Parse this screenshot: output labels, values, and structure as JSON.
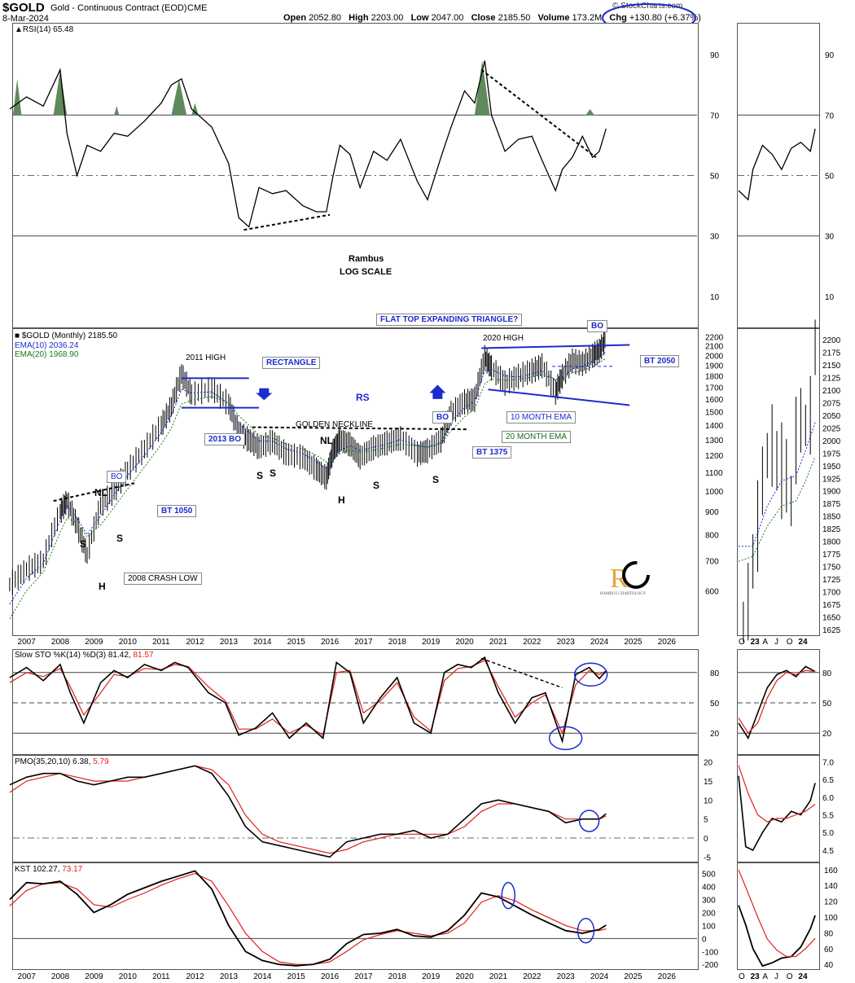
{
  "header": {
    "symbol": "$GOLD",
    "name": "Gold - Continuous Contract (EOD)",
    "exchange": "CME",
    "date": "8-Mar-2024",
    "open_label": "Open",
    "open": "2052.80",
    "high_label": "High",
    "high": "2203.00",
    "low_label": "Low",
    "low": "2047.00",
    "close_label": "Close",
    "close": "2185.50",
    "volume_label": "Volume",
    "volume": "173.2M",
    "chg_label": "Chg",
    "chg": "+130.80 (+6.37%)",
    "brand": "© StockCharts.com"
  },
  "annotations": {
    "author": "Rambus",
    "scale": "LOG SCALE",
    "flat_top": "FLAT TOP EXPANDING TRIANGLE?",
    "high_2011": "2011 HIGH",
    "high_2020": "2020 HIGH",
    "rectangle": "RECTANGLE",
    "bo_2013": "2013 BO",
    "bt_1050": "BT 1050",
    "bo": "BO",
    "bo2": "BO",
    "bo3": "BO",
    "bt_1375": "BT 1375",
    "bt_2050": "BT 2050",
    "ema10_lbl": "10 MONTH EMA",
    "ema20_lbl": "20 MONTH EMA",
    "golden_neckline": "GOLDEN NECKLINE",
    "nl": "NL",
    "nl2": "NL",
    "rs": "RS",
    "crash_low": "2008 CRASH LOW",
    "s": "S",
    "h": "H",
    "logo_text": "RAMBUS CHARTOLOGY"
  },
  "colors": {
    "price_bars": "#000000",
    "ema10": "#1c2bcc",
    "ema20": "#1a7a1a",
    "annotation_blue": "#1c2bcc",
    "signal_red": "#e0201a",
    "rsi_fill": "#5e8a5e",
    "logo_gold": "#e7a23a"
  },
  "chart_data": [
    {
      "type": "line",
      "panel": "RSI",
      "title": "RSI(14)",
      "current": "65.48",
      "ylim": [
        0,
        100
      ],
      "y_ticks": [
        10,
        30,
        50,
        70,
        90
      ],
      "x": [
        2006.5,
        2007.0,
        2007.5,
        2008.0,
        2008.2,
        2008.5,
        2008.8,
        2009.2,
        2009.6,
        2010.0,
        2010.5,
        2011.0,
        2011.3,
        2011.6,
        2011.9,
        2012.5,
        2013.0,
        2013.3,
        2013.6,
        2013.9,
        2014.3,
        2014.7,
        2015.2,
        2015.6,
        2015.9,
        2016.1,
        2016.3,
        2016.6,
        2016.9,
        2017.3,
        2017.7,
        2018.1,
        2018.6,
        2018.9,
        2019.3,
        2019.6,
        2020.0,
        2020.3,
        2020.6,
        2020.8,
        2021.2,
        2021.6,
        2022.0,
        2022.3,
        2022.7,
        2022.9,
        2023.2,
        2023.5,
        2023.8,
        2024.0,
        2024.2
      ],
      "values": [
        72,
        76,
        73,
        85,
        64,
        50,
        60,
        58,
        64,
        63,
        68,
        74,
        80,
        82,
        72,
        66,
        54,
        36,
        33,
        46,
        44,
        45,
        40,
        38,
        38,
        50,
        60,
        57,
        46,
        58,
        55,
        62,
        48,
        42,
        56,
        66,
        78,
        74,
        88,
        70,
        58,
        62,
        63,
        55,
        45,
        52,
        56,
        63,
        56,
        58,
        65.48
      ],
      "overbought": 70,
      "oversold": 30
    },
    {
      "type": "line",
      "panel": "price",
      "title": "$GOLD (Monthly)",
      "current": "2185.50",
      "scale": "log",
      "ylim": [
        480,
        2260
      ],
      "y_ticks": [
        600,
        700,
        800,
        900,
        1000,
        1100,
        1200,
        1300,
        1400,
        1500,
        1600,
        1700,
        1800,
        1900,
        2000,
        2100,
        2200
      ],
      "x_ticks": [
        "2007",
        "2008",
        "2009",
        "2010",
        "2011",
        "2012",
        "2013",
        "2014",
        "2015",
        "2016",
        "2017",
        "2018",
        "2019",
        "2020",
        "2021",
        "2022",
        "2023",
        "2024",
        "2025",
        "2026"
      ],
      "x": [
        2006.5,
        2007.0,
        2007.5,
        2008.0,
        2008.2,
        2008.5,
        2008.8,
        2009.2,
        2009.6,
        2010.0,
        2010.5,
        2011.0,
        2011.3,
        2011.6,
        2011.9,
        2012.5,
        2013.0,
        2013.3,
        2013.6,
        2013.9,
        2014.3,
        2014.7,
        2015.2,
        2015.6,
        2015.9,
        2016.1,
        2016.3,
        2016.6,
        2016.9,
        2017.3,
        2017.7,
        2018.1,
        2018.6,
        2018.9,
        2019.3,
        2019.6,
        2020.0,
        2020.3,
        2020.6,
        2020.8,
        2021.2,
        2021.6,
        2022.0,
        2022.3,
        2022.7,
        2022.9,
        2023.2,
        2023.5,
        2023.8,
        2024.0,
        2024.2
      ],
      "values": [
        620,
        670,
        700,
        900,
        950,
        840,
        720,
        930,
        1000,
        1110,
        1240,
        1400,
        1540,
        1820,
        1640,
        1690,
        1560,
        1350,
        1300,
        1250,
        1290,
        1210,
        1190,
        1120,
        1070,
        1230,
        1300,
        1270,
        1190,
        1250,
        1280,
        1310,
        1210,
        1230,
        1300,
        1490,
        1580,
        1600,
        1980,
        1880,
        1740,
        1800,
        1850,
        1900,
        1660,
        1800,
        1950,
        1920,
        2000,
        2050,
        2185.5
      ],
      "series": [
        {
          "name": "$GOLD (Monthly) 2185.50",
          "values_ref": "values"
        },
        {
          "name": "EMA(10) 2036.24",
          "values": [
            560,
            640,
            690,
            860,
            930,
            870,
            800,
            880,
            980,
            1080,
            1200,
            1350,
            1470,
            1680,
            1650,
            1660,
            1560,
            1420,
            1350,
            1290,
            1290,
            1240,
            1210,
            1160,
            1120,
            1170,
            1230,
            1260,
            1230,
            1250,
            1270,
            1300,
            1260,
            1250,
            1280,
            1420,
            1530,
            1580,
            1850,
            1860,
            1800,
            1790,
            1820,
            1850,
            1760,
            1780,
            1870,
            1890,
            1940,
            1990,
            2036.24
          ]
        },
        {
          "name": "EMA(20) 1968.90",
          "values": [
            520,
            600,
            660,
            810,
            870,
            850,
            790,
            840,
            920,
            1010,
            1130,
            1270,
            1380,
            1560,
            1590,
            1620,
            1570,
            1470,
            1400,
            1330,
            1310,
            1270,
            1240,
            1200,
            1160,
            1170,
            1210,
            1230,
            1220,
            1230,
            1250,
            1270,
            1260,
            1250,
            1270,
            1360,
            1460,
            1520,
            1730,
            1770,
            1760,
            1770,
            1790,
            1810,
            1770,
            1770,
            1830,
            1850,
            1890,
            1930,
            1968.9
          ]
        }
      ]
    },
    {
      "type": "line",
      "panel": "STO",
      "title": "Slow STO %K(14) %D(3)",
      "k_current": "81.42",
      "d_current": "81.57",
      "ylim": [
        0,
        100
      ],
      "y_ticks": [
        20,
        50,
        80
      ],
      "x": [
        2006.5,
        2007.0,
        2007.5,
        2008.0,
        2008.3,
        2008.7,
        2009.2,
        2009.6,
        2010.0,
        2010.5,
        2011.0,
        2011.4,
        2011.8,
        2012.4,
        2012.9,
        2013.3,
        2013.8,
        2014.3,
        2014.8,
        2015.3,
        2015.8,
        2016.2,
        2016.6,
        2017.0,
        2017.5,
        2018.0,
        2018.5,
        2019.0,
        2019.4,
        2019.8,
        2020.2,
        2020.6,
        2021.0,
        2021.5,
        2022.0,
        2022.4,
        2022.9,
        2023.3,
        2023.7,
        2024.0,
        2024.2
      ],
      "k": [
        75,
        85,
        72,
        88,
        60,
        30,
        70,
        82,
        75,
        88,
        82,
        90,
        85,
        60,
        50,
        18,
        25,
        40,
        15,
        30,
        15,
        90,
        80,
        30,
        55,
        75,
        30,
        20,
        80,
        88,
        85,
        95,
        60,
        30,
        55,
        60,
        12,
        78,
        85,
        74,
        81.42
      ],
      "d": [
        70,
        80,
        76,
        84,
        66,
        38,
        60,
        78,
        76,
        84,
        83,
        88,
        86,
        66,
        52,
        24,
        24,
        34,
        20,
        28,
        18,
        80,
        82,
        40,
        52,
        70,
        36,
        22,
        72,
        84,
        86,
        92,
        66,
        36,
        50,
        58,
        20,
        68,
        82,
        78,
        81.57
      ]
    },
    {
      "type": "line",
      "panel": "PMO",
      "title": "PMO(35,20,10)",
      "pmo_current": "6.38",
      "signal_current": "5.79",
      "ylim": [
        -6,
        21
      ],
      "y_ticks": [
        -5,
        0,
        5,
        10,
        15,
        20
      ],
      "x": [
        2006.5,
        2007.0,
        2007.5,
        2008.0,
        2008.5,
        2009.0,
        2009.5,
        2010.0,
        2010.5,
        2011.0,
        2011.5,
        2012.0,
        2012.5,
        2013.0,
        2013.5,
        2014.0,
        2014.5,
        2015.0,
        2015.5,
        2016.0,
        2016.5,
        2017.0,
        2017.5,
        2018.0,
        2018.5,
        2019.0,
        2019.5,
        2020.0,
        2020.5,
        2021.0,
        2021.5,
        2022.0,
        2022.5,
        2023.0,
        2023.5,
        2024.0,
        2024.2
      ],
      "pmo": [
        14,
        16,
        17,
        17,
        15,
        14,
        15,
        16,
        16,
        17,
        18,
        19,
        17,
        11,
        3,
        -1,
        -2,
        -3,
        -4,
        -5,
        -1,
        0,
        1,
        1,
        2,
        0,
        1,
        5,
        9,
        10,
        9,
        8,
        7,
        4,
        5,
        5,
        6.38
      ],
      "signal": [
        12,
        15,
        16,
        17,
        16,
        15,
        15,
        15,
        16,
        17,
        18,
        19,
        18,
        14,
        6,
        1,
        -1,
        -2,
        -3,
        -4,
        -3,
        -1,
        0,
        1,
        1,
        1,
        1,
        3,
        7,
        9,
        9,
        8,
        7,
        5,
        5,
        5,
        5.79
      ]
    },
    {
      "type": "line",
      "panel": "KST",
      "title": "KST",
      "kst_current": "102.27",
      "signal_current": "73.17",
      "ylim": [
        -230,
        560
      ],
      "y_ticks": [
        -200,
        -100,
        0,
        100,
        200,
        300,
        400,
        500
      ],
      "x": [
        2006.5,
        2007.0,
        2007.5,
        2008.0,
        2008.5,
        2009.0,
        2009.5,
        2010.0,
        2010.5,
        2011.0,
        2011.5,
        2012.0,
        2012.5,
        2013.0,
        2013.5,
        2014.0,
        2014.5,
        2015.0,
        2015.5,
        2016.0,
        2016.5,
        2017.0,
        2017.5,
        2018.0,
        2018.5,
        2019.0,
        2019.5,
        2020.0,
        2020.5,
        2021.0,
        2021.5,
        2022.0,
        2022.5,
        2023.0,
        2023.5,
        2024.0,
        2024.2
      ],
      "kst": [
        300,
        430,
        420,
        440,
        340,
        200,
        260,
        340,
        390,
        440,
        480,
        520,
        380,
        100,
        -100,
        -170,
        -200,
        -210,
        -200,
        -160,
        -40,
        30,
        40,
        70,
        20,
        10,
        60,
        180,
        350,
        320,
        250,
        180,
        120,
        60,
        40,
        70,
        102.27
      ],
      "signal": [
        250,
        370,
        420,
        430,
        380,
        260,
        240,
        300,
        350,
        410,
        460,
        500,
        440,
        250,
        40,
        -100,
        -180,
        -200,
        -200,
        -180,
        -100,
        -10,
        30,
        60,
        40,
        20,
        40,
        120,
        280,
        330,
        290,
        220,
        160,
        100,
        60,
        60,
        73.17
      ]
    }
  ],
  "right_panels": {
    "x_ticks": [
      "O",
      "23",
      "A",
      "J",
      "O",
      "24"
    ],
    "rsi_ticks": [
      10,
      30,
      50,
      70,
      90
    ],
    "price_ticks": [
      1625,
      1650,
      1675,
      1700,
      1725,
      1750,
      1775,
      1800,
      1825,
      1850,
      1875,
      1900,
      1925,
      1950,
      1975,
      2000,
      2025,
      2050,
      2075,
      2100,
      2125,
      2150,
      2175,
      2200
    ],
    "sto_ticks": [
      20,
      50,
      80
    ],
    "pmo_ticks": [
      "4.5",
      "5.0",
      "5.5",
      "6.0",
      "6.5",
      "7.0"
    ],
    "kst_ticks": [
      40,
      60,
      80,
      100,
      120,
      140,
      160
    ]
  }
}
